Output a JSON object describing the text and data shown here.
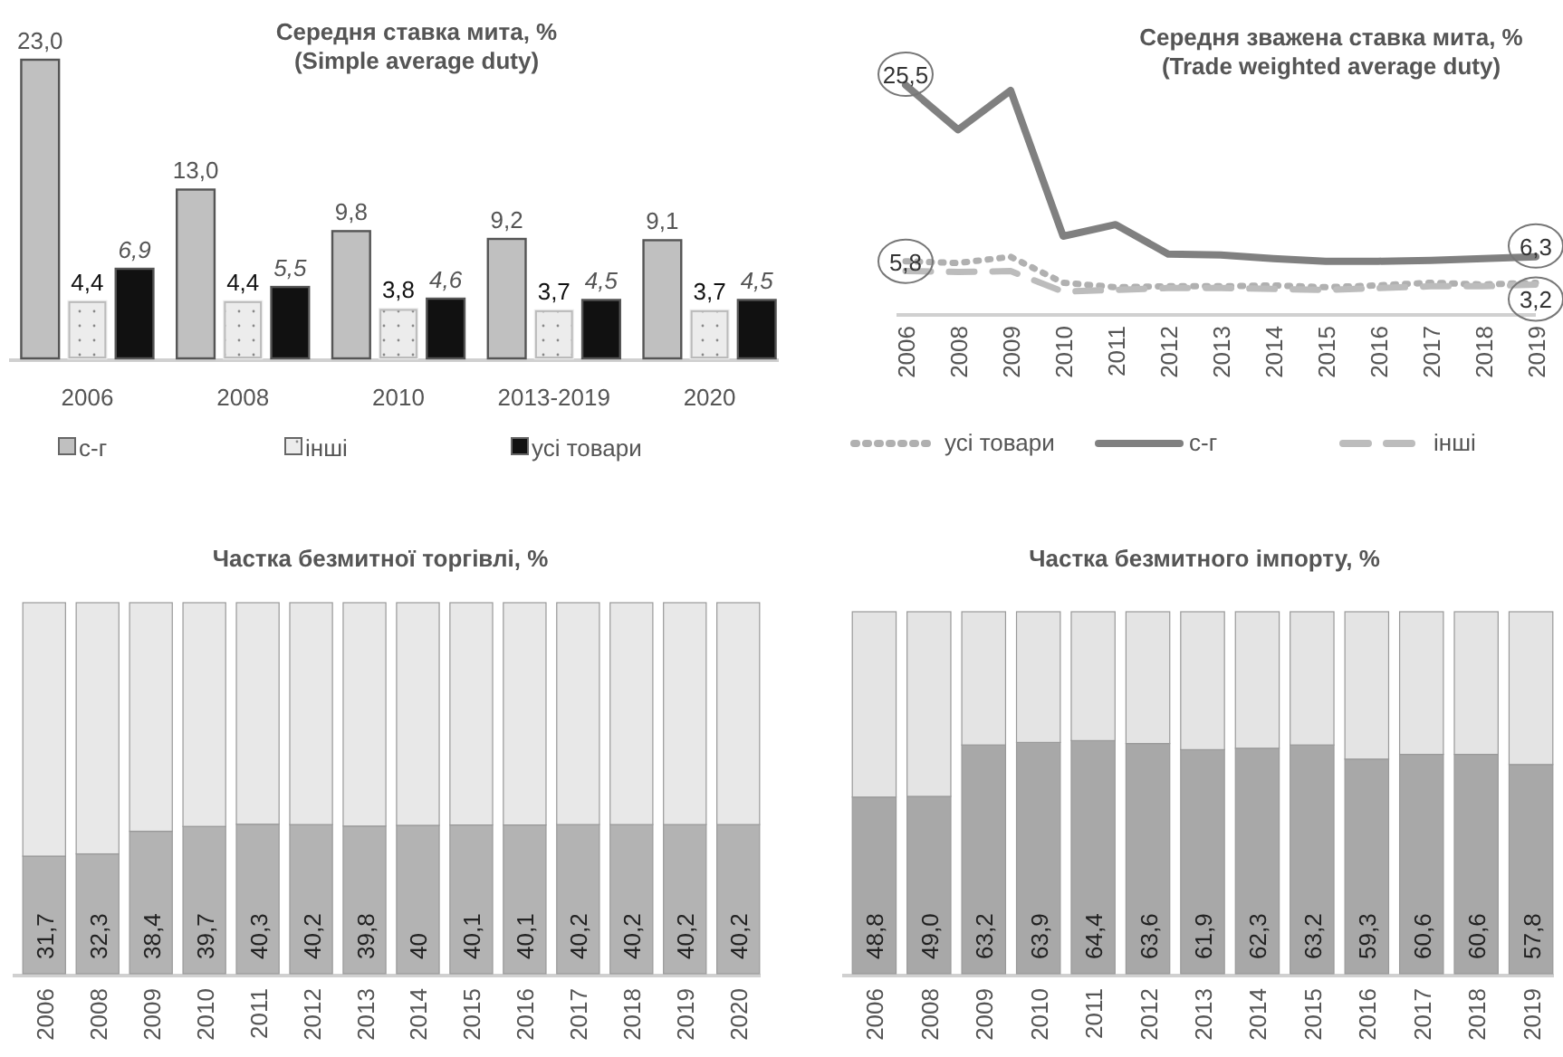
{
  "chart_data": [
    {
      "type": "bar",
      "title": "Середня ставка мита, %",
      "subtitle": "(Simple average duty)",
      "categories": [
        "2006",
        "2008",
        "2010",
        "2013-2019",
        "2020"
      ],
      "series": [
        {
          "name": "с-г",
          "color": "#c0c0c0",
          "values": [
            23.0,
            13.0,
            9.8,
            9.2,
            9.1
          ],
          "value_labels": [
            "23,0",
            "13,0",
            "9,8",
            "9,2",
            "9,1"
          ]
        },
        {
          "name": "інші",
          "color": "#ececec",
          "values": [
            4.4,
            4.4,
            3.8,
            3.7,
            3.7
          ],
          "value_labels": [
            "4,4",
            "4,4",
            "3,8",
            "3,7",
            "3,7"
          ]
        },
        {
          "name": "усі товари",
          "color": "#111111",
          "values": [
            6.9,
            5.5,
            4.6,
            4.5,
            4.5
          ],
          "value_labels": [
            "6,9",
            "5,5",
            "4,6",
            "4,5",
            "4,5"
          ]
        }
      ],
      "legend": "bottom"
    },
    {
      "type": "line",
      "title": "Середня зважена ставка мита, %",
      "subtitle": "(Trade weighted average duty)",
      "categories": [
        "2006",
        "2008",
        "2009",
        "2010",
        "2011",
        "2012",
        "2013",
        "2014",
        "2015",
        "2016",
        "2017",
        "2018",
        "2019"
      ],
      "series": [
        {
          "name": "усі товари",
          "color": "#b0b0b0",
          "line_style": "dotted",
          "values": [
            5.8,
            5.6,
            6.3,
            3.4,
            2.9,
            3.0,
            3.0,
            3.1,
            2.9,
            3.1,
            3.4,
            3.2,
            3.4
          ],
          "value_labels": [
            "5,8",
            null,
            null,
            null,
            null,
            null,
            null,
            null,
            null,
            null,
            null,
            null,
            null
          ]
        },
        {
          "name": "с-г",
          "color": "#808080",
          "line_style": "solid",
          "values": [
            25.5,
            20.5,
            24.9,
            8.6,
            9.9,
            6.6,
            6.5,
            6.1,
            5.8,
            5.8,
            5.9,
            6.1,
            6.3
          ],
          "value_labels": [
            "25,5",
            null,
            null,
            null,
            null,
            null,
            null,
            null,
            null,
            null,
            null,
            null,
            "6,3"
          ]
        },
        {
          "name": "інші",
          "color": "#bcbcbc",
          "line_style": "dashed",
          "values": [
            4.7,
            4.6,
            4.7,
            2.4,
            2.6,
            2.8,
            2.8,
            2.7,
            2.6,
            2.8,
            3.0,
            3.0,
            3.2
          ],
          "value_labels": [
            null,
            null,
            null,
            null,
            null,
            null,
            null,
            null,
            null,
            null,
            null,
            null,
            "3,2"
          ]
        }
      ],
      "legend": "bottom"
    },
    {
      "type": "bar",
      "stacked": true,
      "title": "Частка безмитної торгівлі, %",
      "categories": [
        "2006",
        "2008",
        "2009",
        "2010",
        "2011",
        "2012",
        "2013",
        "2014",
        "2015",
        "2016",
        "2017",
        "2018",
        "2019",
        "2020"
      ],
      "series": [
        {
          "color": "#b3b3b3",
          "values": [
            31.7,
            32.3,
            38.4,
            39.7,
            40.3,
            40.2,
            39.8,
            40,
            40.1,
            40.1,
            40.2,
            40.2,
            40.2,
            40.2
          ],
          "value_labels": [
            "31,7",
            "32,3",
            "38,4",
            "39,7",
            "40,3",
            "40,2",
            "39,8",
            "40",
            "40,1",
            "40,1",
            "40,2",
            "40,2",
            "40,2",
            "40,2"
          ]
        },
        {
          "color": "#e8e8e8",
          "values": [
            68.3,
            67.7,
            61.6,
            60.3,
            59.7,
            59.8,
            60.2,
            60,
            59.9,
            59.9,
            59.8,
            59.8,
            59.8,
            59.8
          ]
        }
      ]
    },
    {
      "type": "bar",
      "stacked": true,
      "title": "Частка безмитного імпорту, %",
      "categories": [
        "2006",
        "2008",
        "2009",
        "2010",
        "2011",
        "2012",
        "2013",
        "2014",
        "2015",
        "2016",
        "2017",
        "2018",
        "2019"
      ],
      "series": [
        {
          "color": "#a8a8a8",
          "values": [
            48.8,
            49.0,
            63.2,
            63.9,
            64.4,
            63.6,
            61.9,
            62.3,
            63.2,
            59.3,
            60.6,
            60.6,
            57.8
          ],
          "value_labels": [
            "48,8",
            "49,0",
            "63,2",
            "63,9",
            "64,4",
            "63,6",
            "61,9",
            "62,3",
            "63,2",
            "59,3",
            "60,6",
            "60,6",
            "57,8"
          ]
        },
        {
          "color": "#e4e4e4",
          "values": [
            51.2,
            51.0,
            36.8,
            36.1,
            35.6,
            36.4,
            38.1,
            37.7,
            36.8,
            40.7,
            39.4,
            39.4,
            42.2
          ]
        }
      ]
    }
  ]
}
